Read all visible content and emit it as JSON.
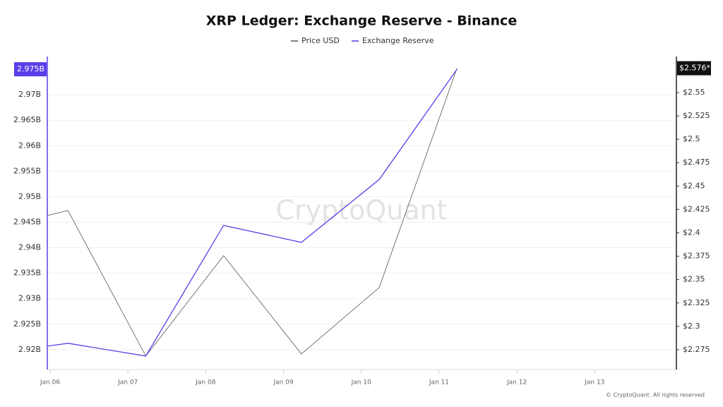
{
  "chart_data": {
    "type": "line",
    "title": "XRP Ledger: Exchange Reserve - Binance",
    "watermark": "CryptoQuant",
    "footer": "© CryptoQuant. All rights reserved",
    "x": [
      -0.036,
      0.23,
      1.23,
      2.23,
      3.23,
      4.23,
      5.23
    ],
    "xlim": [
      -0.036,
      8.05
    ],
    "xticks": [
      {
        "value": 0,
        "label": "Jan 06"
      },
      {
        "value": 1,
        "label": "Jan 07"
      },
      {
        "value": 2,
        "label": "Jan 08"
      },
      {
        "value": 3,
        "label": "Jan 09"
      },
      {
        "value": 4,
        "label": "Jan 10"
      },
      {
        "value": 5,
        "label": "Jan 11"
      },
      {
        "value": 6,
        "label": "Jan 12"
      },
      {
        "value": 7,
        "label": "Jan 13"
      }
    ],
    "series": [
      {
        "name": "Price USD",
        "color": "#555555",
        "axis": "y2",
        "values": [
          2.4185,
          2.4238,
          2.2682,
          2.3755,
          2.2705,
          2.3415,
          2.576
        ],
        "last_value_label": "$2.576*",
        "label_color": "#111111"
      },
      {
        "name": "Exchange Reserve",
        "color": "#5a3ee8",
        "values": [
          2920690000,
          2921250000,
          2918750000,
          2944380000,
          2941050000,
          2953380000,
          2975000000
        ],
        "last_value_label": "2.975B",
        "label_color": "#5a3ee8"
      }
    ],
    "ylim": [
      2916100000,
      2977500000
    ],
    "yticks": [
      {
        "value": 2920000000,
        "label": "2.92B"
      },
      {
        "value": 2925000000,
        "label": "2.925B"
      },
      {
        "value": 2930000000,
        "label": "2.93B"
      },
      {
        "value": 2935000000,
        "label": "2.935B"
      },
      {
        "value": 2940000000,
        "label": "2.94B"
      },
      {
        "value": 2945000000,
        "label": "2.945B"
      },
      {
        "value": 2950000000,
        "label": "2.95B"
      },
      {
        "value": 2955000000,
        "label": "2.955B"
      },
      {
        "value": 2960000000,
        "label": "2.96B"
      },
      {
        "value": 2965000000,
        "label": "2.965B"
      },
      {
        "value": 2970000000,
        "label": "2.97B"
      }
    ],
    "y2lim": [
      2.2538,
      2.5885
    ],
    "y2ticks": [
      {
        "value": 2.275,
        "label": "$2.275"
      },
      {
        "value": 2.3,
        "label": "$2.3"
      },
      {
        "value": 2.325,
        "label": "$2.325"
      },
      {
        "value": 2.35,
        "label": "$2.35"
      },
      {
        "value": 2.375,
        "label": "$2.375"
      },
      {
        "value": 2.4,
        "label": "$2.4"
      },
      {
        "value": 2.425,
        "label": "$2.425"
      },
      {
        "value": 2.45,
        "label": "$2.45"
      },
      {
        "value": 2.475,
        "label": "$2.475"
      },
      {
        "value": 2.5,
        "label": "$2.5"
      },
      {
        "value": 2.525,
        "label": "$2.525"
      },
      {
        "value": 2.55,
        "label": "$2.55"
      }
    ],
    "grid": true
  }
}
